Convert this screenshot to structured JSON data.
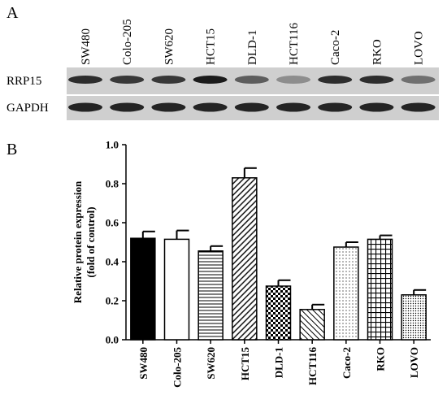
{
  "panel_labels": [
    "A",
    "B"
  ],
  "blot": {
    "lanes": [
      "SW480",
      "Colo-205",
      "SW620",
      "HCT15",
      "DLD-1",
      "HCT116",
      "Caco-2",
      "RKO",
      "LOVO"
    ],
    "rows": [
      "RRP15",
      "GAPDH"
    ]
  },
  "chart_data": {
    "type": "bar",
    "y_label": [
      "Relative protein expression",
      "(fold of control)"
    ],
    "categories": [
      "SW480",
      "Colo-205",
      "SW620",
      "HCT15",
      "DLD-1",
      "HCT116",
      "Caco-2",
      "RKO",
      "LOVO"
    ],
    "values": [
      0.52,
      0.515,
      0.455,
      0.83,
      0.275,
      0.155,
      0.475,
      0.515,
      0.23
    ],
    "errors": [
      0.035,
      0.045,
      0.025,
      0.05,
      0.03,
      0.025,
      0.025,
      0.02,
      0.025
    ],
    "patterns": [
      "solid",
      "none",
      "horizontal",
      "diagonal",
      "checker",
      "diagonal-back",
      "dots",
      "grid",
      "dots-dense"
    ],
    "color": "#000000",
    "ylim": [
      0,
      1
    ],
    "yticks": [
      {
        "value": 0,
        "label": "0.0"
      },
      0.2,
      0.4,
      0.6,
      0.8,
      {
        "value": 1,
        "label": "1.0"
      }
    ]
  }
}
